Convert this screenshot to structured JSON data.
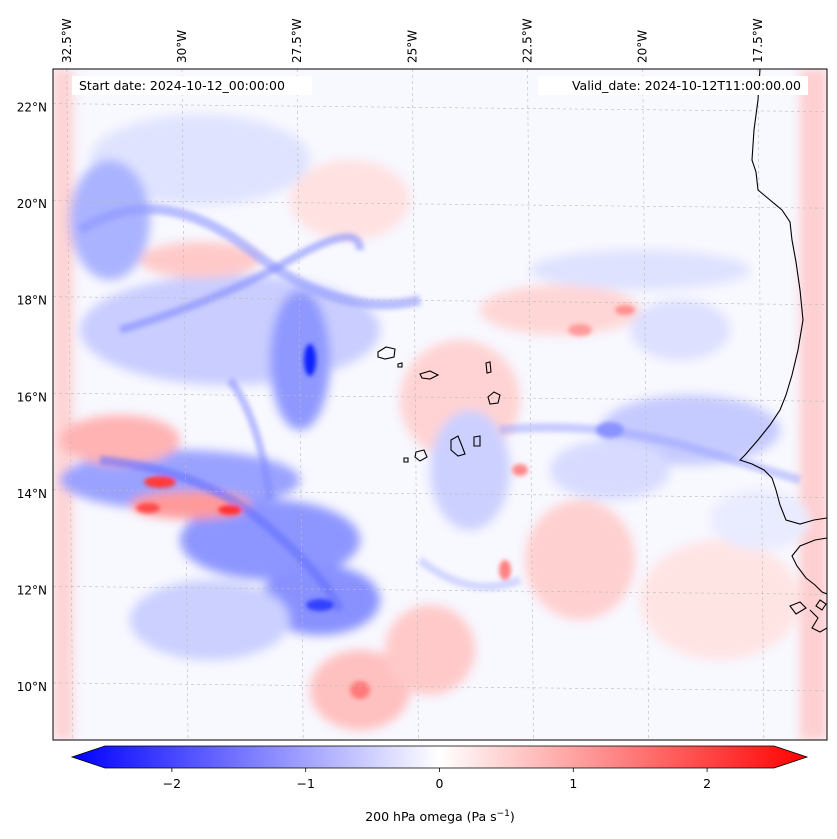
{
  "map": {
    "start_date": "Start date: 2024-10-12_00:00:00",
    "valid_date": "Valid_date: 2024-10-12T11:00:00.00",
    "lon_labels": [
      "32.5°W",
      "30°W",
      "27.5°W",
      "25°W",
      "22.5°W",
      "20°W",
      "17.5°W"
    ],
    "lat_labels": [
      "22°N",
      "20°N",
      "18°N",
      "16°N",
      "14°N",
      "12°N",
      "10°N"
    ],
    "lon_values": [
      -32.5,
      -30,
      -27.5,
      -25,
      -22.5,
      -20,
      -17.5
    ],
    "lat_values": [
      22,
      20,
      18,
      16,
      14,
      12,
      10
    ],
    "extent": {
      "lon_min": -32.8,
      "lon_max": -16.0,
      "lat_min": 8.9,
      "lat_max": 22.8
    },
    "coastline_color": "#000000",
    "gridline_color": "#bbbbbb"
  },
  "colorbar": {
    "label": "200 hPa omega (Pa s",
    "label_sup": "−1",
    "label_close": ")",
    "ticks": [
      -2,
      -1,
      0,
      1,
      2
    ],
    "tick_labels": [
      "−2",
      "−1",
      "0",
      "1",
      "2"
    ],
    "range": [
      -2.5,
      2.5
    ],
    "colormap": "bwr",
    "extend": "both"
  }
}
